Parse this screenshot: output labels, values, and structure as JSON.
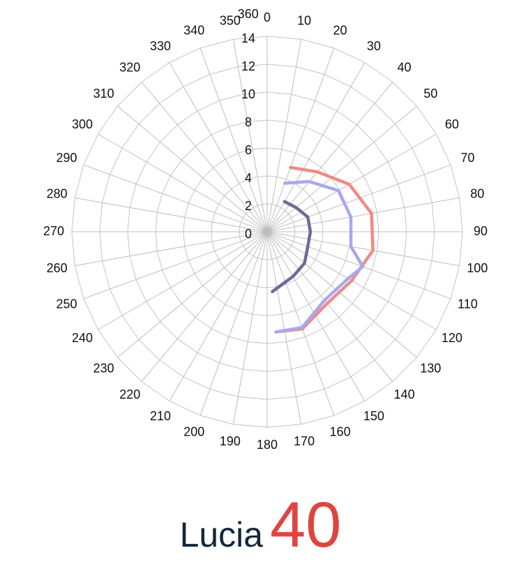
{
  "chart_data": {
    "type": "radar",
    "angle_labels": [
      "0",
      "10",
      "20",
      "30",
      "40",
      "50",
      "60",
      "70",
      "80",
      "90",
      "100",
      "110",
      "120",
      "130",
      "140",
      "150",
      "160",
      "170",
      "180",
      "190",
      "200",
      "210",
      "220",
      "230",
      "240",
      "250",
      "260",
      "270",
      "280",
      "290",
      "300",
      "310",
      "320",
      "330",
      "340",
      "350",
      "360"
    ],
    "radial_ticks": [
      "0",
      "2",
      "4",
      "6",
      "8",
      "10",
      "12",
      "14"
    ],
    "rlim": [
      0,
      14
    ],
    "grid": true,
    "series": [
      {
        "color": "#f08a86",
        "points": [
          [
            20,
            4.9
          ],
          [
            40,
            5.6
          ],
          [
            60,
            6.8
          ],
          [
            80,
            7.6
          ],
          [
            100,
            7.7
          ],
          [
            120,
            7.0
          ],
          [
            140,
            6.7
          ],
          [
            160,
            7.4
          ],
          [
            175,
            7.2
          ]
        ]
      },
      {
        "color": "#a8a8ee",
        "points": [
          [
            20,
            3.7
          ],
          [
            40,
            4.7
          ],
          [
            60,
            5.9
          ],
          [
            80,
            6.1
          ],
          [
            100,
            6.1
          ],
          [
            110,
            7.3
          ],
          [
            120,
            6.7
          ],
          [
            140,
            6.4
          ],
          [
            160,
            7.3
          ],
          [
            175,
            7.2
          ]
        ]
      },
      {
        "color": "#6c6a96",
        "points": [
          [
            30,
            2.5
          ],
          [
            50,
            2.7
          ],
          [
            70,
            3.1
          ],
          [
            90,
            3.1
          ],
          [
            110,
            3.1
          ],
          [
            130,
            3.5
          ],
          [
            150,
            3.7
          ],
          [
            175,
            4.3
          ]
        ]
      }
    ]
  },
  "caption": {
    "name": "Lucia",
    "number": "40"
  }
}
